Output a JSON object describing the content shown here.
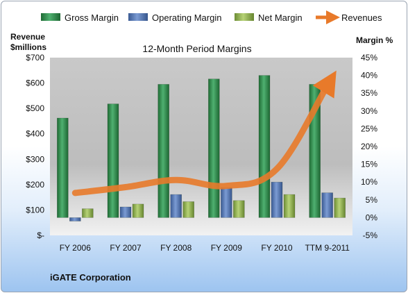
{
  "chart_data": {
    "type": "bar",
    "title": "12-Month Period Margins",
    "categories": [
      "FY 2006",
      "FY 2007",
      "FY 2008",
      "FY 2009",
      "FY 2010",
      "TTM 9-2011"
    ],
    "left_axis": {
      "label_line1": "Revenue",
      "label_line2": "$millions",
      "ylim": [
        0,
        700
      ],
      "ticks": [
        0,
        100,
        200,
        300,
        400,
        500,
        600,
        700
      ],
      "tick_labels": [
        "$-",
        "$100",
        "$200",
        "$300",
        "$400",
        "$500",
        "$600",
        "$700"
      ]
    },
    "right_axis": {
      "label": "Margin %",
      "ylim": [
        -5,
        45
      ],
      "ticks": [
        -5,
        0,
        5,
        10,
        15,
        20,
        25,
        30,
        35,
        40,
        45
      ],
      "tick_labels": [
        "-5%",
        "0%",
        "5%",
        "10%",
        "15%",
        "20%",
        "25%",
        "30%",
        "35%",
        "40%",
        "45%"
      ]
    },
    "series": [
      {
        "name": "Gross Margin",
        "type": "bar",
        "axis": "right",
        "color": "#2e8b4a",
        "values": [
          28,
          32,
          37.5,
          39,
          40,
          37.5
        ]
      },
      {
        "name": "Operating Margin",
        "type": "bar",
        "axis": "right",
        "color": "#4f72b0",
        "values": [
          -1,
          3,
          6.5,
          8.5,
          10,
          7
        ]
      },
      {
        "name": "Net Margin",
        "type": "bar",
        "axis": "right",
        "color": "#8db04b",
        "values": [
          2.5,
          3.8,
          4.5,
          4.8,
          6.5,
          5.5
        ]
      },
      {
        "name": "Revenues",
        "type": "line",
        "axis": "left",
        "color": "#e87a2a",
        "values": [
          167,
          190,
          218,
          195,
          262,
          590
        ]
      }
    ],
    "grid": false,
    "legend_position": "top"
  },
  "footer": {
    "company": "iGATE Corporation"
  }
}
